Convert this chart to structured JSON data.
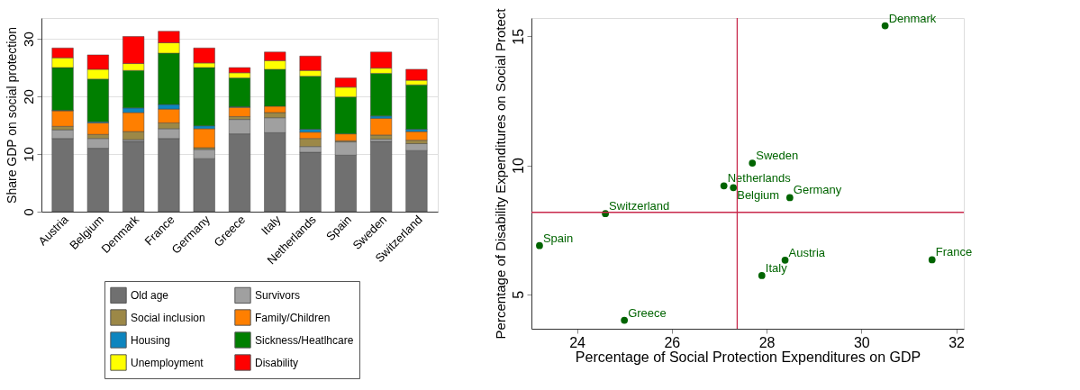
{
  "chart_data": [
    {
      "type": "bar",
      "stacked": true,
      "ylabel": "Share GDP on social protection",
      "categories": [
        "Austria",
        "Belgium",
        "Denmark",
        "France",
        "Germany",
        "Greece",
        "Italy",
        "Netherlands",
        "Spain",
        "Sweden",
        "Switzerland"
      ],
      "ylim": [
        0,
        33.6
      ],
      "yticks": [
        0,
        10,
        20,
        30
      ],
      "grid": "y",
      "legend": "bottom",
      "series": [
        {
          "name": "Old age",
          "color": "#707070",
          "values": [
            12.7,
            11.0,
            12.2,
            12.7,
            9.2,
            13.5,
            13.7,
            10.3,
            9.8,
            12.2,
            10.6
          ]
        },
        {
          "name": "Survivors",
          "color": "#a0a0a0",
          "values": [
            1.5,
            1.7,
            0.3,
            1.7,
            1.6,
            2.5,
            2.6,
            1.0,
            2.3,
            0.4,
            1.2
          ]
        },
        {
          "name": "Social inclusion",
          "color": "#9c8847",
          "values": [
            0.6,
            0.7,
            1.4,
            1.0,
            0.3,
            0.5,
            0.9,
            1.4,
            0.2,
            0.7,
            0.6
          ]
        },
        {
          "name": "Family/Children",
          "color": "#ff7f00",
          "values": [
            2.7,
            2.0,
            3.3,
            2.4,
            3.3,
            1.6,
            1.1,
            1.1,
            1.2,
            2.9,
            1.5
          ]
        },
        {
          "name": "Housing",
          "color": "#0d85bf",
          "values": [
            0.1,
            0.2,
            0.8,
            0.8,
            0.5,
            0.1,
            null,
            0.5,
            null,
            0.4,
            0.4
          ]
        },
        {
          "name": "Sickness/Heatlhcare",
          "color": "#007f00",
          "values": [
            7.4,
            7.4,
            6.5,
            8.9,
            10.1,
            5.0,
            6.4,
            9.2,
            6.4,
            7.4,
            7.7
          ]
        },
        {
          "name": "Unemployment",
          "color": "#ffff00",
          "values": [
            1.7,
            1.7,
            1.2,
            1.8,
            0.8,
            0.9,
            1.5,
            1.0,
            1.7,
            0.9,
            0.8
          ]
        },
        {
          "name": "Disability",
          "color": "#ff0000",
          "values": [
            1.7,
            2.5,
            4.7,
            2.0,
            2.6,
            0.9,
            1.5,
            2.5,
            1.6,
            2.8,
            1.9
          ]
        }
      ]
    },
    {
      "type": "scatter",
      "xlabel": "Percentage of Social Protection Expenditures on GDP",
      "ylabel": "Percentage of Disability Expenditures on Social Protect",
      "xlim": [
        23.04,
        32.16
      ],
      "ylim": [
        3.67,
        15.71
      ],
      "xticks": [
        24,
        26,
        28,
        30,
        32
      ],
      "yticks": [
        5,
        10,
        15
      ],
      "grid": false,
      "legend": false,
      "marker": "circle",
      "series": [
        {
          "color": "#006400",
          "x": [
            30.5,
            27.7,
            27.1,
            27.3,
            28.49,
            24.6,
            23.21,
            28.39,
            27.9,
            31.49,
            25.0
          ],
          "values": [
            15.41,
            10.09,
            9.21,
            9.14,
            8.75,
            8.13,
            6.89,
            6.33,
            5.73,
            6.34,
            4.0
          ]
        }
      ],
      "annotations": [
        {
          "text": "Denmark",
          "x": 30.5,
          "y": 15.41
        },
        {
          "text": "Sweden",
          "x": 27.7,
          "y": 10.09
        },
        {
          "text": "Netherlands",
          "x": 27.1,
          "y": 9.21
        },
        {
          "text": "Belgium",
          "x": 27.3,
          "y": 9.14
        },
        {
          "text": "Germany",
          "x": 28.49,
          "y": 8.75
        },
        {
          "text": "Switzerland",
          "x": 24.6,
          "y": 8.13
        },
        {
          "text": "Spain",
          "x": 23.21,
          "y": 6.89
        },
        {
          "text": "Austria",
          "x": 28.39,
          "y": 6.33
        },
        {
          "text": "Italy",
          "x": 27.9,
          "y": 5.73
        },
        {
          "text": "France",
          "x": 31.49,
          "y": 6.34
        },
        {
          "text": "Greece",
          "x": 25.0,
          "y": 4.0
        }
      ],
      "ref_lines": [
        {
          "axis": "x",
          "value": 27.38,
          "color": "#c8284b"
        },
        {
          "axis": "y",
          "value": 8.18,
          "color": "#c8284b"
        }
      ]
    }
  ]
}
